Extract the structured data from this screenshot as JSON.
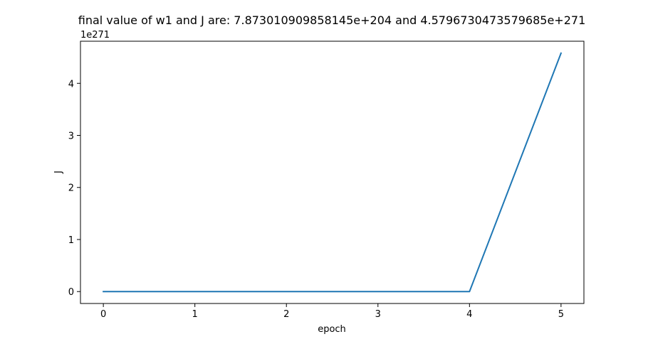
{
  "chart_data": {
    "type": "line",
    "title": "final value of w1 and J are: 7.873010909858145e+204 and 4.5796730473579685e+271",
    "xlabel": "epoch",
    "ylabel": "J",
    "y_offset_label": "1e271",
    "xlim": [
      -0.25,
      5.25
    ],
    "ylim": [
      -0.229,
      4.809
    ],
    "x_ticks": [
      0,
      1,
      2,
      3,
      4,
      5
    ],
    "x_tick_labels": [
      "0",
      "1",
      "2",
      "3",
      "4",
      "5"
    ],
    "y_ticks": [
      0,
      1,
      2,
      3,
      4
    ],
    "y_tick_labels": [
      "0",
      "1",
      "2",
      "3",
      "4"
    ],
    "grid": false,
    "series": [
      {
        "color": "#1f77b4",
        "x": [
          0,
          1,
          2,
          3,
          4,
          5
        ],
        "y": [
          0,
          0,
          0,
          0,
          0,
          4.579673047357969
        ]
      }
    ]
  }
}
